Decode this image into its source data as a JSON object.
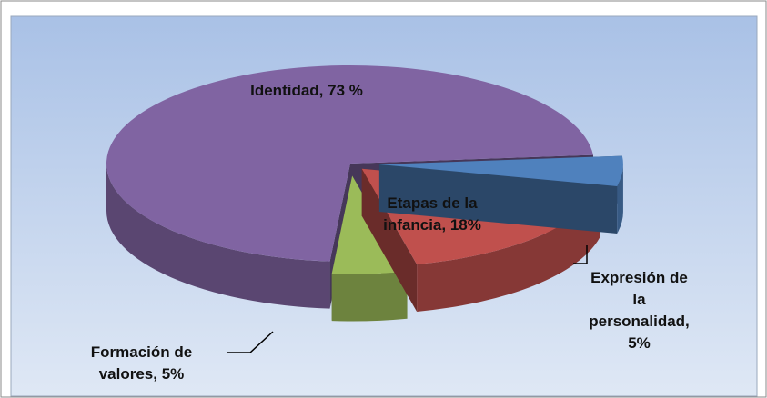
{
  "chart_data": {
    "type": "pie",
    "values": [
      5,
      18,
      5,
      73
    ],
    "value_labels": [
      "Expresión de la personalidad, 5%",
      "Etapas de la infancia, 18%",
      "Formación de valores, 5%",
      "Identidad, 73 %"
    ],
    "colors": [
      "#4f81bd",
      "#c0504d",
      "#9bbb59",
      "#8064a2"
    ],
    "start_angle": -5
  }
}
